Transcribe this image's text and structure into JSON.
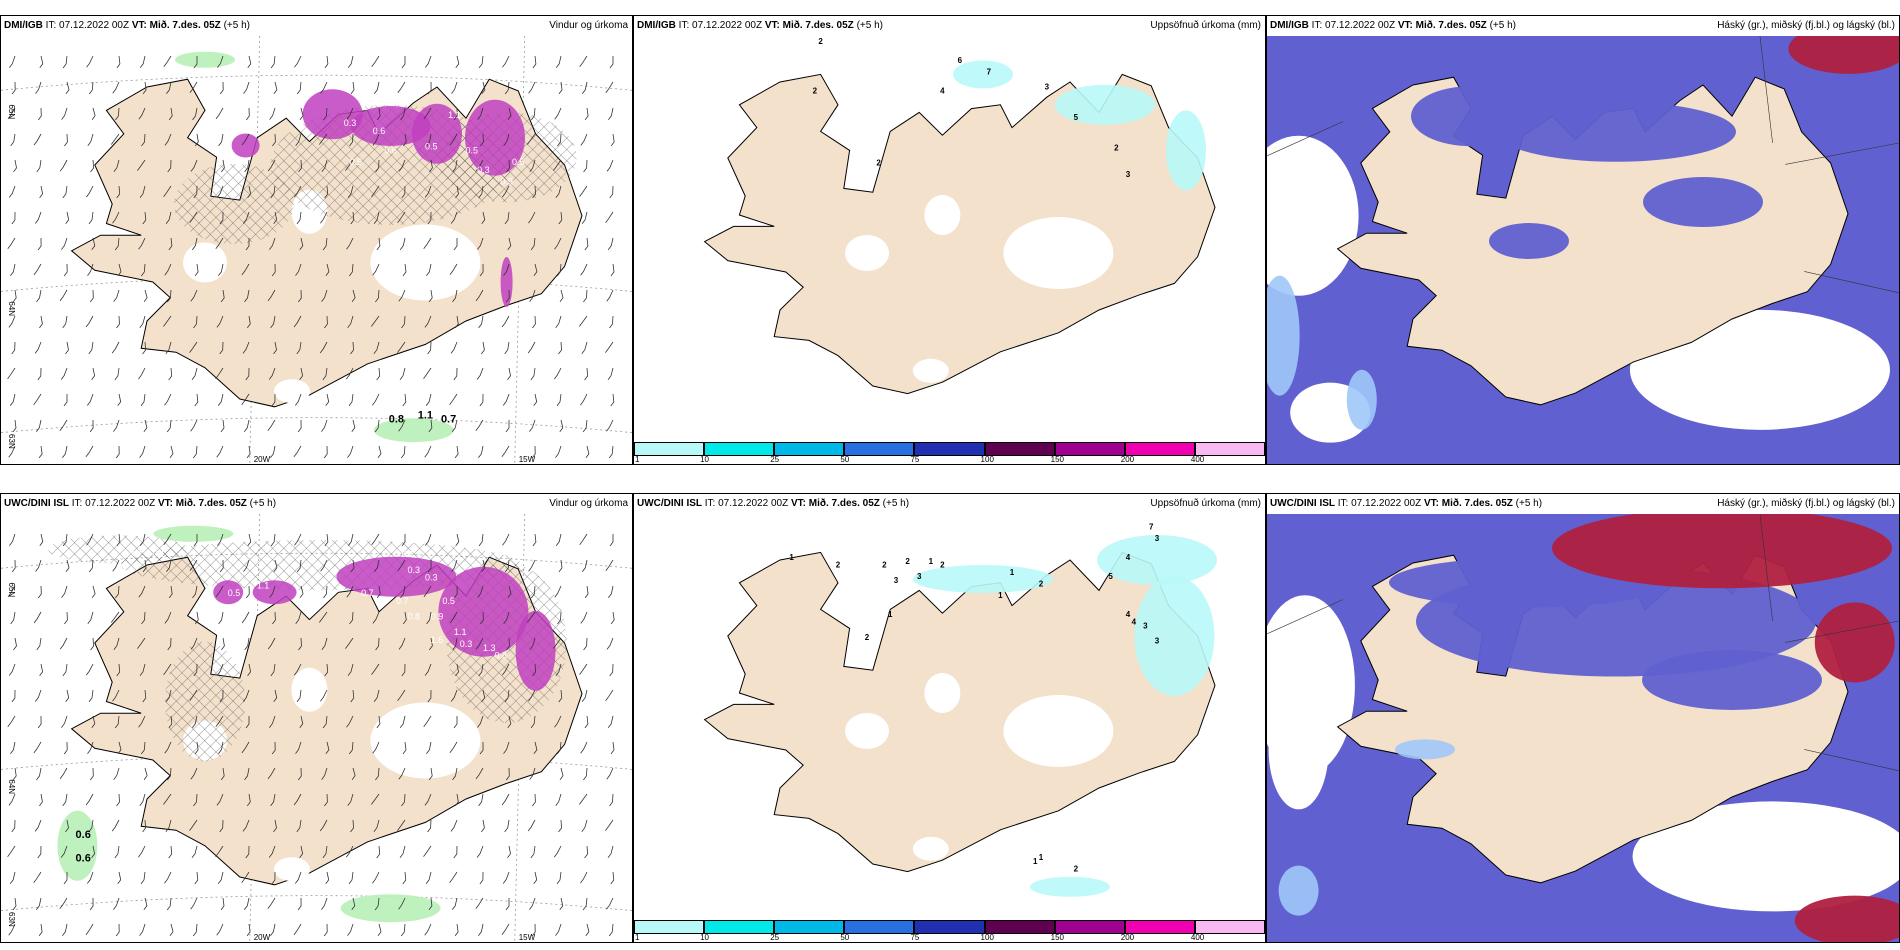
{
  "panels": [
    {
      "source": "DMI/IGB",
      "it": "IT: 07.12.2022 00Z",
      "vt_label": "VT:",
      "vt_value": "Mið. 7.des. 05Z",
      "lead": "(+5 h)",
      "title": "Vindur og úrkoma"
    },
    {
      "source": "DMI/IGB",
      "it": "IT: 07.12.2022 00Z",
      "vt_label": "VT:",
      "vt_value": "Mið. 7.des. 05Z",
      "lead": "(+5 h)",
      "title": "Uppsöfnuð úrkoma (mm)"
    },
    {
      "source": "DMI/IGB",
      "it": "IT: 07.12.2022 00Z",
      "vt_label": "VT:",
      "vt_value": "Mið. 7.des. 05Z",
      "lead": "(+5 h)",
      "title": "Háský (gr.), miðský (fj.bl.) og lágský (bl.)"
    },
    {
      "source": "UWC/DINI ISL",
      "it": "IT: 07.12.2022 00Z",
      "vt_label": "VT:",
      "vt_value": "Mið. 7.des. 05Z",
      "lead": "(+5 h)",
      "title": "Vindur og úrkoma"
    },
    {
      "source": "UWC/DINI ISL",
      "it": "IT: 07.12.2022 00Z",
      "vt_label": "VT:",
      "vt_value": "Mið. 7.des. 05Z",
      "lead": "(+5 h)",
      "title": "Uppsöfnuð úrkoma (mm)"
    },
    {
      "source": "UWC/DINI ISL",
      "it": "IT: 07.12.2022 00Z",
      "vt_label": "VT:",
      "vt_value": "Mið. 7.des. 05Z",
      "lead": "(+5 h)",
      "title": "Háský (gr.), miðský (fj.bl.) og lágský (bl.)"
    }
  ],
  "wind_map": {
    "lat_labels": [
      "65N",
      "64N",
      "63N"
    ],
    "lon_labels": [
      "20W",
      "15W"
    ],
    "top_values": [
      "0.5",
      "0.5",
      "0.3",
      "0.6",
      "0.6",
      "0.5",
      "1.1",
      "0.5",
      "0.3",
      "0.9",
      "0.5",
      "0.5",
      "0.8",
      "1.1",
      "0.7"
    ],
    "bottom_values": [
      "0.5",
      "0.4",
      "0.1",
      "0.1",
      "0.5",
      "0.3",
      "0.3",
      "0.7",
      "0.7",
      "0.5",
      "0.8",
      "0.9",
      "1.1",
      "1.1",
      "1.6",
      "0.3",
      "1.3",
      "0.8",
      "0.6",
      "0.6"
    ]
  },
  "precip_map": {
    "top_values": [
      "2",
      "2",
      "6",
      "7",
      "4",
      "3",
      "5",
      "2",
      "3",
      "2"
    ],
    "bottom_values": [
      "7",
      "3",
      "4",
      "1",
      "2",
      "2",
      "2",
      "1",
      "2",
      "3",
      "3",
      "5",
      "1",
      "2",
      "1",
      "1",
      "2",
      "4",
      "3",
      "3",
      "4",
      "2",
      "1",
      "1"
    ]
  },
  "colorbar": {
    "colors": [
      "#b8f8f8",
      "#00e8e8",
      "#00b8e8",
      "#2870e0",
      "#2030b0",
      "#600050",
      "#a00090",
      "#f000b0",
      "#f8b8f0"
    ],
    "ticks": [
      "1",
      "10",
      "25",
      "50",
      "75",
      "100",
      "150",
      "200",
      "400"
    ]
  },
  "colors": {
    "land": "#f3e1cc",
    "sea": "#ffffff",
    "precip_green": "#b8f0b8",
    "snow_magenta": "#c040c0",
    "precip_cyan": "#b8f8f8",
    "cloud_high": "#6060d0",
    "cloud_low": "#a0c8f8",
    "cloud_red": "#b02040"
  }
}
